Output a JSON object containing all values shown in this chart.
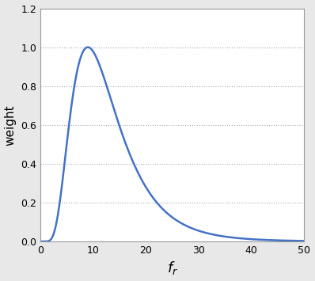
{
  "title": "",
  "xlabel": "$f_r$",
  "ylabel": "weight",
  "xlim": [
    0,
    50
  ],
  "ylim": [
    0,
    1.2
  ],
  "xticks": [
    0,
    10,
    20,
    30,
    40,
    50
  ],
  "yticks": [
    0,
    0.2,
    0.4,
    0.6,
    0.8,
    1.0,
    1.2
  ],
  "grid_yticks": [
    0.2,
    0.4,
    0.6,
    0.8,
    1.0
  ],
  "line_color": "#4472C4",
  "line_width": 1.8,
  "background_color": "#e8e8e8",
  "plot_bg_color": "#ffffff",
  "log_std": 0.5,
  "peak_fr": 9.0
}
